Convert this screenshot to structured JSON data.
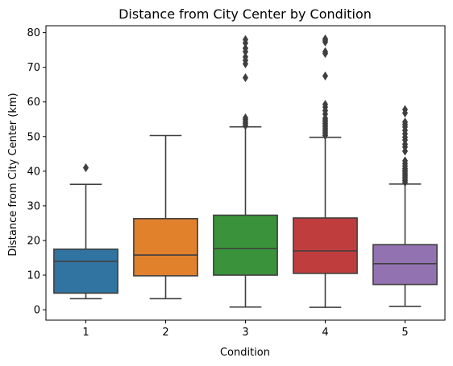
{
  "chart_data": {
    "type": "box",
    "title": "Distance from City Center by Condition",
    "xlabel": "Condition",
    "ylabel": "Distance from City Center (km)",
    "ylim": [
      -3,
      82
    ],
    "yticks": [
      0,
      10,
      20,
      30,
      40,
      50,
      60,
      70,
      80
    ],
    "categories": [
      "1",
      "2",
      "3",
      "4",
      "5"
    ],
    "grid": false,
    "legend": "none",
    "boxes": [
      {
        "category": "1",
        "color": "#3274a1",
        "min": 3.2,
        "q1": 4.8,
        "median": 14.0,
        "q3": 17.5,
        "max": 36.2,
        "outliers": [
          41.0
        ]
      },
      {
        "category": "2",
        "color": "#e1812c",
        "min": 3.2,
        "q1": 9.8,
        "median": 15.8,
        "q3": 26.3,
        "max": 50.3,
        "outliers": []
      },
      {
        "category": "3",
        "color": "#3a923a",
        "min": 0.8,
        "q1": 10.0,
        "median": 17.7,
        "q3": 27.3,
        "max": 52.8,
        "outliers": [
          53.2,
          53.8,
          54.3,
          54.9,
          55.4,
          67.0,
          71.0,
          72.0,
          73.0,
          74.5,
          75.5,
          77.0,
          78.0
        ]
      },
      {
        "category": "4",
        "color": "#c03d3e",
        "min": 0.7,
        "q1": 10.5,
        "median": 17.0,
        "q3": 26.5,
        "max": 49.8,
        "outliers": [
          50.3,
          50.8,
          51.3,
          51.8,
          52.3,
          52.8,
          53.3,
          53.8,
          54.3,
          54.8,
          55.3,
          56.5,
          57.5,
          58.5,
          59.3,
          67.5,
          74.0,
          74.5,
          77.3,
          77.8,
          78.2
        ]
      },
      {
        "category": "5",
        "color": "#9372b2",
        "min": 1.0,
        "q1": 7.3,
        "median": 13.3,
        "q3": 18.8,
        "max": 36.3,
        "outliers": [
          36.8,
          37.3,
          37.8,
          38.3,
          38.8,
          39.3,
          39.8,
          40.3,
          40.8,
          41.5,
          42.2,
          43.0,
          45.8,
          47.0,
          47.8,
          49.0,
          49.8,
          50.8,
          51.8,
          52.8,
          53.5,
          54.2,
          56.8,
          57.8
        ]
      }
    ]
  }
}
